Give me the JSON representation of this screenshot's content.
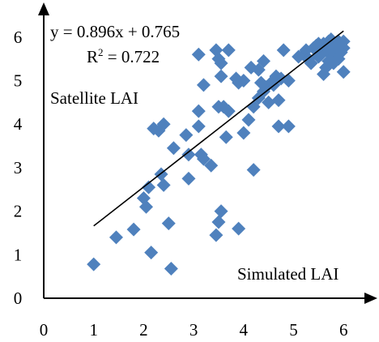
{
  "chart_data": {
    "type": "scatter",
    "title": "",
    "xlabel": "Simulated LAI",
    "ylabel": "Satellite LAI",
    "xlim": [
      0,
      6.5
    ],
    "ylim": [
      0,
      6.3
    ],
    "xticks": [
      "0",
      "1",
      "2",
      "3",
      "4",
      "5",
      "6"
    ],
    "yticks": [
      "0",
      "1",
      "2",
      "3",
      "4",
      "5",
      "6"
    ],
    "grid": false,
    "marker_color": "#4F81BD",
    "line_color": "#000000",
    "equation": "y = 0.896x + 0.765",
    "r2_label": "R",
    "r2_sup": "2",
    "r2_value": " = 0.722",
    "fit": {
      "slope": 0.896,
      "intercept": 0.765,
      "x_range": [
        1.0,
        6.0
      ]
    },
    "points": [
      [
        1.0,
        0.78
      ],
      [
        1.45,
        1.4
      ],
      [
        1.8,
        1.58
      ],
      [
        2.15,
        1.05
      ],
      [
        2.55,
        0.68
      ],
      [
        2.5,
        1.72
      ],
      [
        2.05,
        2.1
      ],
      [
        2.1,
        2.55
      ],
      [
        2.0,
        2.3
      ],
      [
        2.4,
        2.6
      ],
      [
        2.35,
        2.85
      ],
      [
        2.9,
        2.75
      ],
      [
        2.2,
        3.9
      ],
      [
        2.3,
        3.85
      ],
      [
        2.4,
        4.0
      ],
      [
        2.6,
        3.45
      ],
      [
        2.9,
        3.3
      ],
      [
        2.85,
        3.75
      ],
      [
        3.15,
        3.3
      ],
      [
        3.2,
        3.2
      ],
      [
        3.35,
        3.05
      ],
      [
        3.1,
        3.95
      ],
      [
        3.1,
        4.3
      ],
      [
        3.1,
        5.6
      ],
      [
        3.2,
        4.9
      ],
      [
        3.45,
        5.7
      ],
      [
        3.5,
        5.5
      ],
      [
        3.55,
        5.4
      ],
      [
        3.5,
        4.4
      ],
      [
        3.6,
        4.4
      ],
      [
        3.7,
        4.3
      ],
      [
        3.55,
        5.1
      ],
      [
        3.7,
        5.7
      ],
      [
        3.65,
        3.7
      ],
      [
        3.5,
        1.75
      ],
      [
        3.55,
        2.0
      ],
      [
        3.45,
        1.45
      ],
      [
        3.9,
        1.6
      ],
      [
        3.9,
        4.95
      ],
      [
        4.0,
        5.0
      ],
      [
        3.85,
        5.05
      ],
      [
        4.0,
        3.8
      ],
      [
        4.1,
        4.1
      ],
      [
        4.2,
        4.4
      ],
      [
        4.3,
        4.6
      ],
      [
        4.35,
        4.95
      ],
      [
        4.45,
        4.85
      ],
      [
        4.5,
        4.5
      ],
      [
        4.2,
        2.95
      ],
      [
        4.15,
        5.3
      ],
      [
        4.3,
        5.25
      ],
      [
        4.4,
        5.45
      ],
      [
        4.4,
        4.75
      ],
      [
        4.55,
        4.95
      ],
      [
        4.6,
        4.9
      ],
      [
        4.65,
        5.1
      ],
      [
        4.75,
        5.05
      ],
      [
        4.7,
        4.55
      ],
      [
        4.7,
        3.95
      ],
      [
        4.9,
        3.95
      ],
      [
        4.8,
        5.7
      ],
      [
        4.9,
        5.0
      ],
      [
        5.1,
        5.55
      ],
      [
        5.2,
        5.6
      ],
      [
        5.25,
        5.7
      ],
      [
        5.3,
        5.5
      ],
      [
        5.35,
        5.4
      ],
      [
        5.4,
        5.75
      ],
      [
        5.45,
        5.8
      ],
      [
        5.5,
        5.55
      ],
      [
        5.55,
        5.6
      ],
      [
        5.6,
        5.85
      ],
      [
        5.65,
        5.7
      ],
      [
        5.7,
        5.9
      ],
      [
        5.75,
        5.75
      ],
      [
        5.8,
        5.6
      ],
      [
        5.85,
        5.8
      ],
      [
        5.9,
        5.9
      ],
      [
        5.95,
        5.65
      ],
      [
        6.0,
        5.75
      ],
      [
        5.7,
        5.45
      ],
      [
        5.6,
        5.15
      ],
      [
        5.8,
        5.4
      ],
      [
        6.0,
        5.2
      ],
      [
        5.9,
        5.5
      ],
      [
        6.0,
        5.9
      ],
      [
        5.65,
        5.3
      ],
      [
        5.5,
        5.85
      ],
      [
        5.75,
        5.95
      ]
    ]
  }
}
